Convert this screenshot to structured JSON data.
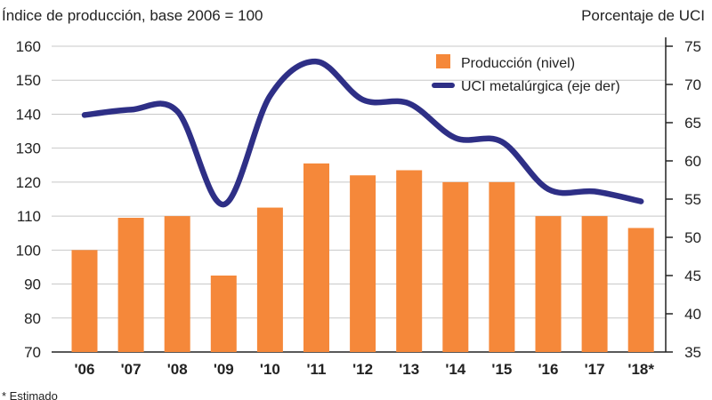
{
  "chart_data": {
    "type": "bar+line",
    "left_axis_title": "Índice de producción, base 2006 = 100",
    "right_axis_title": "Porcentaje de UCI",
    "categories": [
      "'06",
      "'07",
      "'08",
      "'09",
      "'10",
      "'11",
      "'12",
      "'13",
      "'14",
      "'15",
      "'16",
      "'17",
      "'18*"
    ],
    "series": [
      {
        "name": "Producción (nivel)",
        "axis": "left",
        "kind": "bar",
        "values": [
          100,
          109.5,
          110,
          92.5,
          112.5,
          125.5,
          122,
          123.5,
          120,
          120,
          110,
          110,
          106.5
        ]
      },
      {
        "name": "UCI metalúrgica (eje der)",
        "axis": "right",
        "kind": "line",
        "values": [
          66,
          66.7,
          66.5,
          54.3,
          68.5,
          73,
          68,
          67.5,
          63,
          62.5,
          56.3,
          56,
          54.7
        ]
      }
    ],
    "y_left": {
      "min": 70,
      "max": 160,
      "ticks": [
        70,
        80,
        90,
        100,
        110,
        120,
        130,
        140,
        150,
        160
      ]
    },
    "y_right": {
      "min": 35,
      "max": 75,
      "ticks": [
        35,
        40,
        45,
        50,
        55,
        60,
        65,
        70,
        75
      ]
    },
    "legend": {
      "position": "top-right"
    },
    "footnote": "* Estimado",
    "colors": {
      "bar": "#f5883a",
      "line": "#2e2f86",
      "grid": "#c8c8c8",
      "axis": "#222222"
    }
  }
}
